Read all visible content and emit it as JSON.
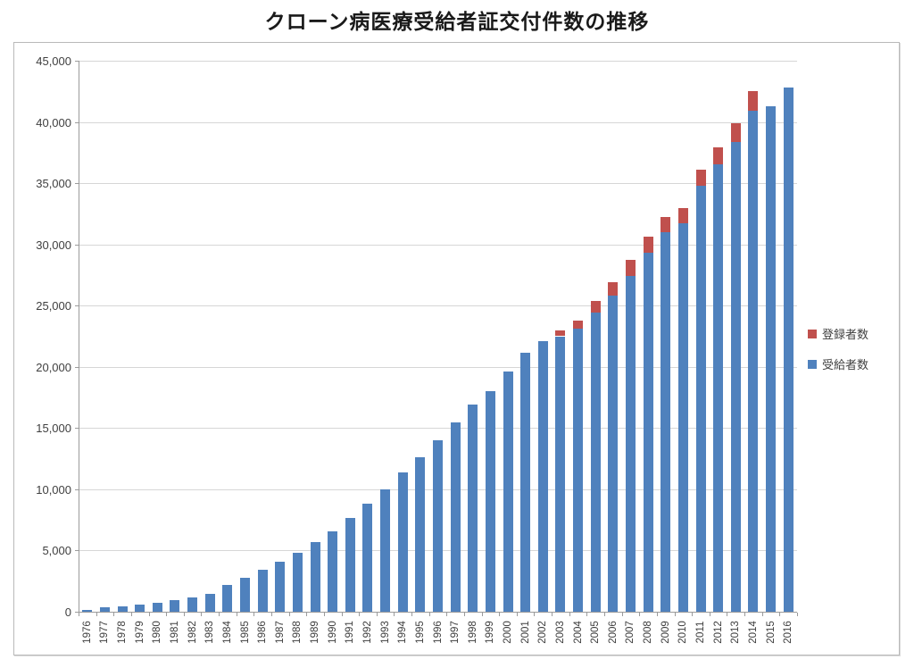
{
  "page": {
    "title": "クローン病医療受給者証交付件数の推移"
  },
  "legend": {
    "items": [
      {
        "label": "登録者数",
        "color": "#C0504D"
      },
      {
        "label": "受給者数",
        "color": "#4F81BD"
      }
    ]
  },
  "colors": {
    "bar_blue": "#4F81BD",
    "bar_red": "#C0504D",
    "gridline": "#d6d6d6",
    "axis": "#9b9b9b",
    "text": "#3f3f3f"
  },
  "chart_data": {
    "type": "bar",
    "stacked": true,
    "title": "クローン病医療受給者証交付件数の推移",
    "categories": [
      "1976",
      "1977",
      "1978",
      "1979",
      "1980",
      "1981",
      "1982",
      "1983",
      "1984",
      "1985",
      "1986",
      "1987",
      "1988",
      "1989",
      "1990",
      "1991",
      "1992",
      "1993",
      "1994",
      "1995",
      "1996",
      "1997",
      "1998",
      "1999",
      "2000",
      "2001",
      "2002",
      "2003",
      "2004",
      "2005",
      "2006",
      "2007",
      "2008",
      "2009",
      "2010",
      "2011",
      "2012",
      "2013",
      "2014",
      "2015",
      "2016"
    ],
    "series": [
      {
        "name": "受給者数",
        "color": "#4F81BD",
        "values": [
          150,
          350,
          450,
          580,
          750,
          970,
          1200,
          1450,
          2200,
          2800,
          3450,
          4050,
          4850,
          5700,
          6600,
          7650,
          8800,
          10000,
          11350,
          12650,
          14000,
          15450,
          16900,
          18050,
          19650,
          21150,
          22100,
          22500,
          23150,
          24400,
          25850,
          27400,
          29300,
          31000,
          31700,
          34800,
          36550,
          38350,
          40900,
          41300,
          42800
        ]
      },
      {
        "name": "登録者数",
        "color": "#C0504D",
        "values": [
          0,
          0,
          0,
          0,
          0,
          0,
          0,
          0,
          0,
          0,
          0,
          0,
          0,
          0,
          0,
          0,
          0,
          0,
          0,
          0,
          0,
          0,
          0,
          0,
          0,
          0,
          0,
          500,
          650,
          950,
          1050,
          1350,
          1300,
          1250,
          1300,
          1300,
          1350,
          1550,
          1600,
          0,
          0
        ]
      }
    ],
    "xlabel": "",
    "ylabel": "",
    "ylim": [
      0,
      45000
    ],
    "ytick_step": 5000,
    "y_tick_labels": [
      "0",
      "5,000",
      "10,000",
      "15,000",
      "20,000",
      "25,000",
      "30,000",
      "35,000",
      "40,000",
      "45,000"
    ],
    "grid": "horizontal",
    "legend_position": "right"
  }
}
